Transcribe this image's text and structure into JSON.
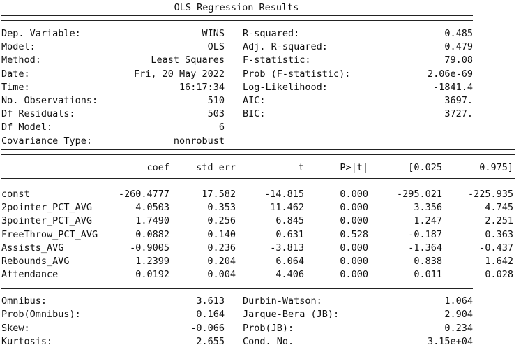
{
  "title": "OLS Regression Results",
  "header": {
    "left": [
      {
        "label": "Dep. Variable:",
        "value": "WINS"
      },
      {
        "label": "Model:",
        "value": "OLS"
      },
      {
        "label": "Method:",
        "value": "Least Squares"
      },
      {
        "label": "Date:",
        "value": "Fri, 20 May 2022"
      },
      {
        "label": "Time:",
        "value": "16:17:34"
      },
      {
        "label": "No. Observations:",
        "value": "510"
      },
      {
        "label": "Df Residuals:",
        "value": "503"
      },
      {
        "label": "Df Model:",
        "value": "6"
      },
      {
        "label": "Covariance Type:",
        "value": "nonrobust"
      }
    ],
    "right": [
      {
        "label": "R-squared:",
        "value": "0.485"
      },
      {
        "label": "Adj. R-squared:",
        "value": "0.479"
      },
      {
        "label": "F-statistic:",
        "value": "79.08"
      },
      {
        "label": "Prob (F-statistic):",
        "value": "2.06e-69"
      },
      {
        "label": "Log-Likelihood:",
        "value": "-1841.4"
      },
      {
        "label": "AIC:",
        "value": "3697."
      },
      {
        "label": "BIC:",
        "value": "3727."
      }
    ]
  },
  "coef_table": {
    "columns": [
      "coef",
      "std err",
      "t",
      "P>|t|",
      "[0.025",
      "0.975]"
    ],
    "rows": [
      {
        "name": "const",
        "values": [
          "-260.4777",
          "17.582",
          "-14.815",
          "0.000",
          "-295.021",
          "-225.935"
        ]
      },
      {
        "name": "2pointer_PCT_AVG",
        "values": [
          "4.0503",
          "0.353",
          "11.462",
          "0.000",
          "3.356",
          "4.745"
        ]
      },
      {
        "name": "3pointer_PCT_AVG",
        "values": [
          "1.7490",
          "0.256",
          "6.845",
          "0.000",
          "1.247",
          "2.251"
        ]
      },
      {
        "name": "FreeThrow_PCT_AVG",
        "values": [
          "0.0882",
          "0.140",
          "0.631",
          "0.528",
          "-0.187",
          "0.363"
        ]
      },
      {
        "name": "Assists_AVG",
        "values": [
          "-0.9005",
          "0.236",
          "-3.813",
          "0.000",
          "-1.364",
          "-0.437"
        ]
      },
      {
        "name": "Rebounds_AVG",
        "values": [
          "1.2399",
          "0.204",
          "6.064",
          "0.000",
          "0.838",
          "1.642"
        ]
      },
      {
        "name": "Attendance",
        "values": [
          "0.0192",
          "0.004",
          "4.406",
          "0.000",
          "0.011",
          "0.028"
        ]
      }
    ]
  },
  "diagnostics": {
    "left": [
      {
        "label": "Omnibus:",
        "value": "3.613"
      },
      {
        "label": "Prob(Omnibus):",
        "value": "0.164"
      },
      {
        "label": "Skew:",
        "value": "-0.066"
      },
      {
        "label": "Kurtosis:",
        "value": "2.655"
      }
    ],
    "right": [
      {
        "label": "Durbin-Watson:",
        "value": "1.064"
      },
      {
        "label": "Jarque-Bera (JB):",
        "value": "2.904"
      },
      {
        "label": "Prob(JB):",
        "value": "0.234"
      },
      {
        "label": "Cond. No.",
        "value": "3.15e+04"
      }
    ]
  }
}
